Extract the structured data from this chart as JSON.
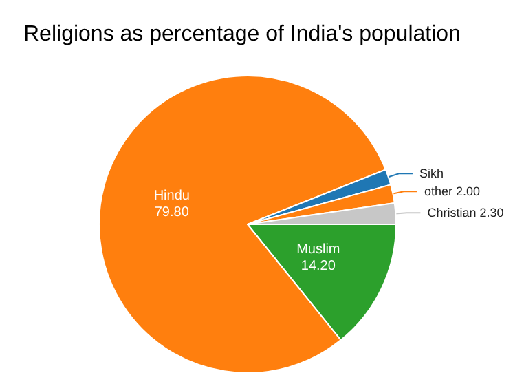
{
  "chart_data": {
    "type": "pie",
    "title": "Religions as percentage of India's population",
    "categories": [
      "Muslim",
      "Hindu",
      "Sikh",
      "other",
      "Christian"
    ],
    "values": [
      14.2,
      79.8,
      1.7,
      2.0,
      2.3
    ],
    "value_labels": [
      "14.20",
      "79.80",
      null,
      "2.00",
      "2.30"
    ],
    "colors": [
      "#2ca02c",
      "#ff7f0e",
      "#1f77b4",
      "#ff7f0e",
      "#c7c7c7"
    ],
    "legend": false
  }
}
